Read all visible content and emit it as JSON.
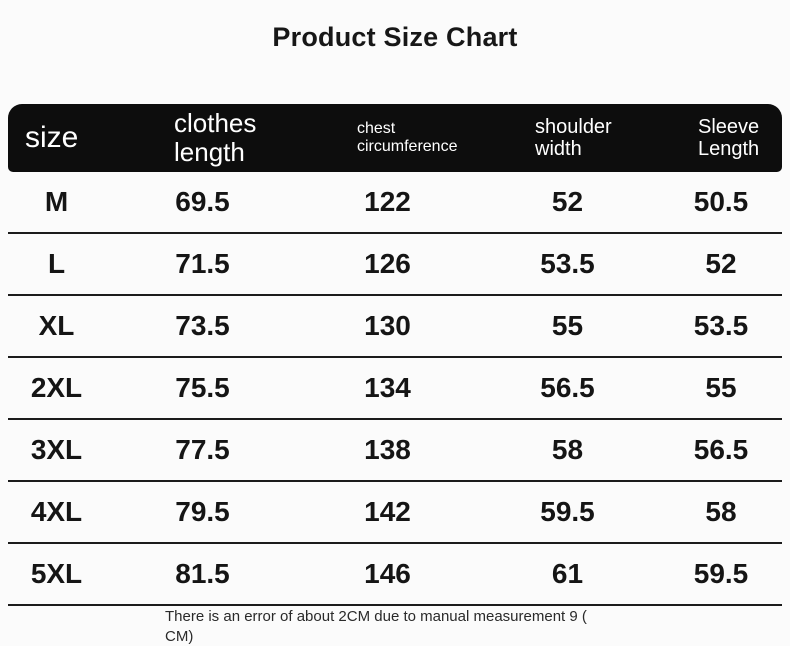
{
  "page_title": "Product Size Chart",
  "chart_data": {
    "type": "table",
    "title": "Product Size Chart",
    "columns": [
      "size",
      "clothes length",
      "chest circumference",
      "shoulder width",
      "Sleeve Length"
    ],
    "rows": [
      [
        "M",
        69.5,
        122,
        52,
        50.5
      ],
      [
        "L",
        71.5,
        126,
        53.5,
        52
      ],
      [
        "XL",
        73.5,
        130,
        55,
        53.5
      ],
      [
        "2XL",
        75.5,
        134,
        56.5,
        55
      ],
      [
        "3XL",
        77.5,
        138,
        58,
        56.5
      ],
      [
        "4XL",
        79.5,
        142,
        59.5,
        58
      ],
      [
        "5XL",
        81.5,
        146,
        61,
        59.5
      ]
    ],
    "note": "There is an error of about 2CM due to manual measurement 9 (\nCM)"
  },
  "colors": {
    "header_bg": "#0d0d0d",
    "header_text": "#ffffff",
    "body_text": "#151515",
    "divider": "#1b1b1b",
    "page_bg": "#fbfbfb"
  }
}
